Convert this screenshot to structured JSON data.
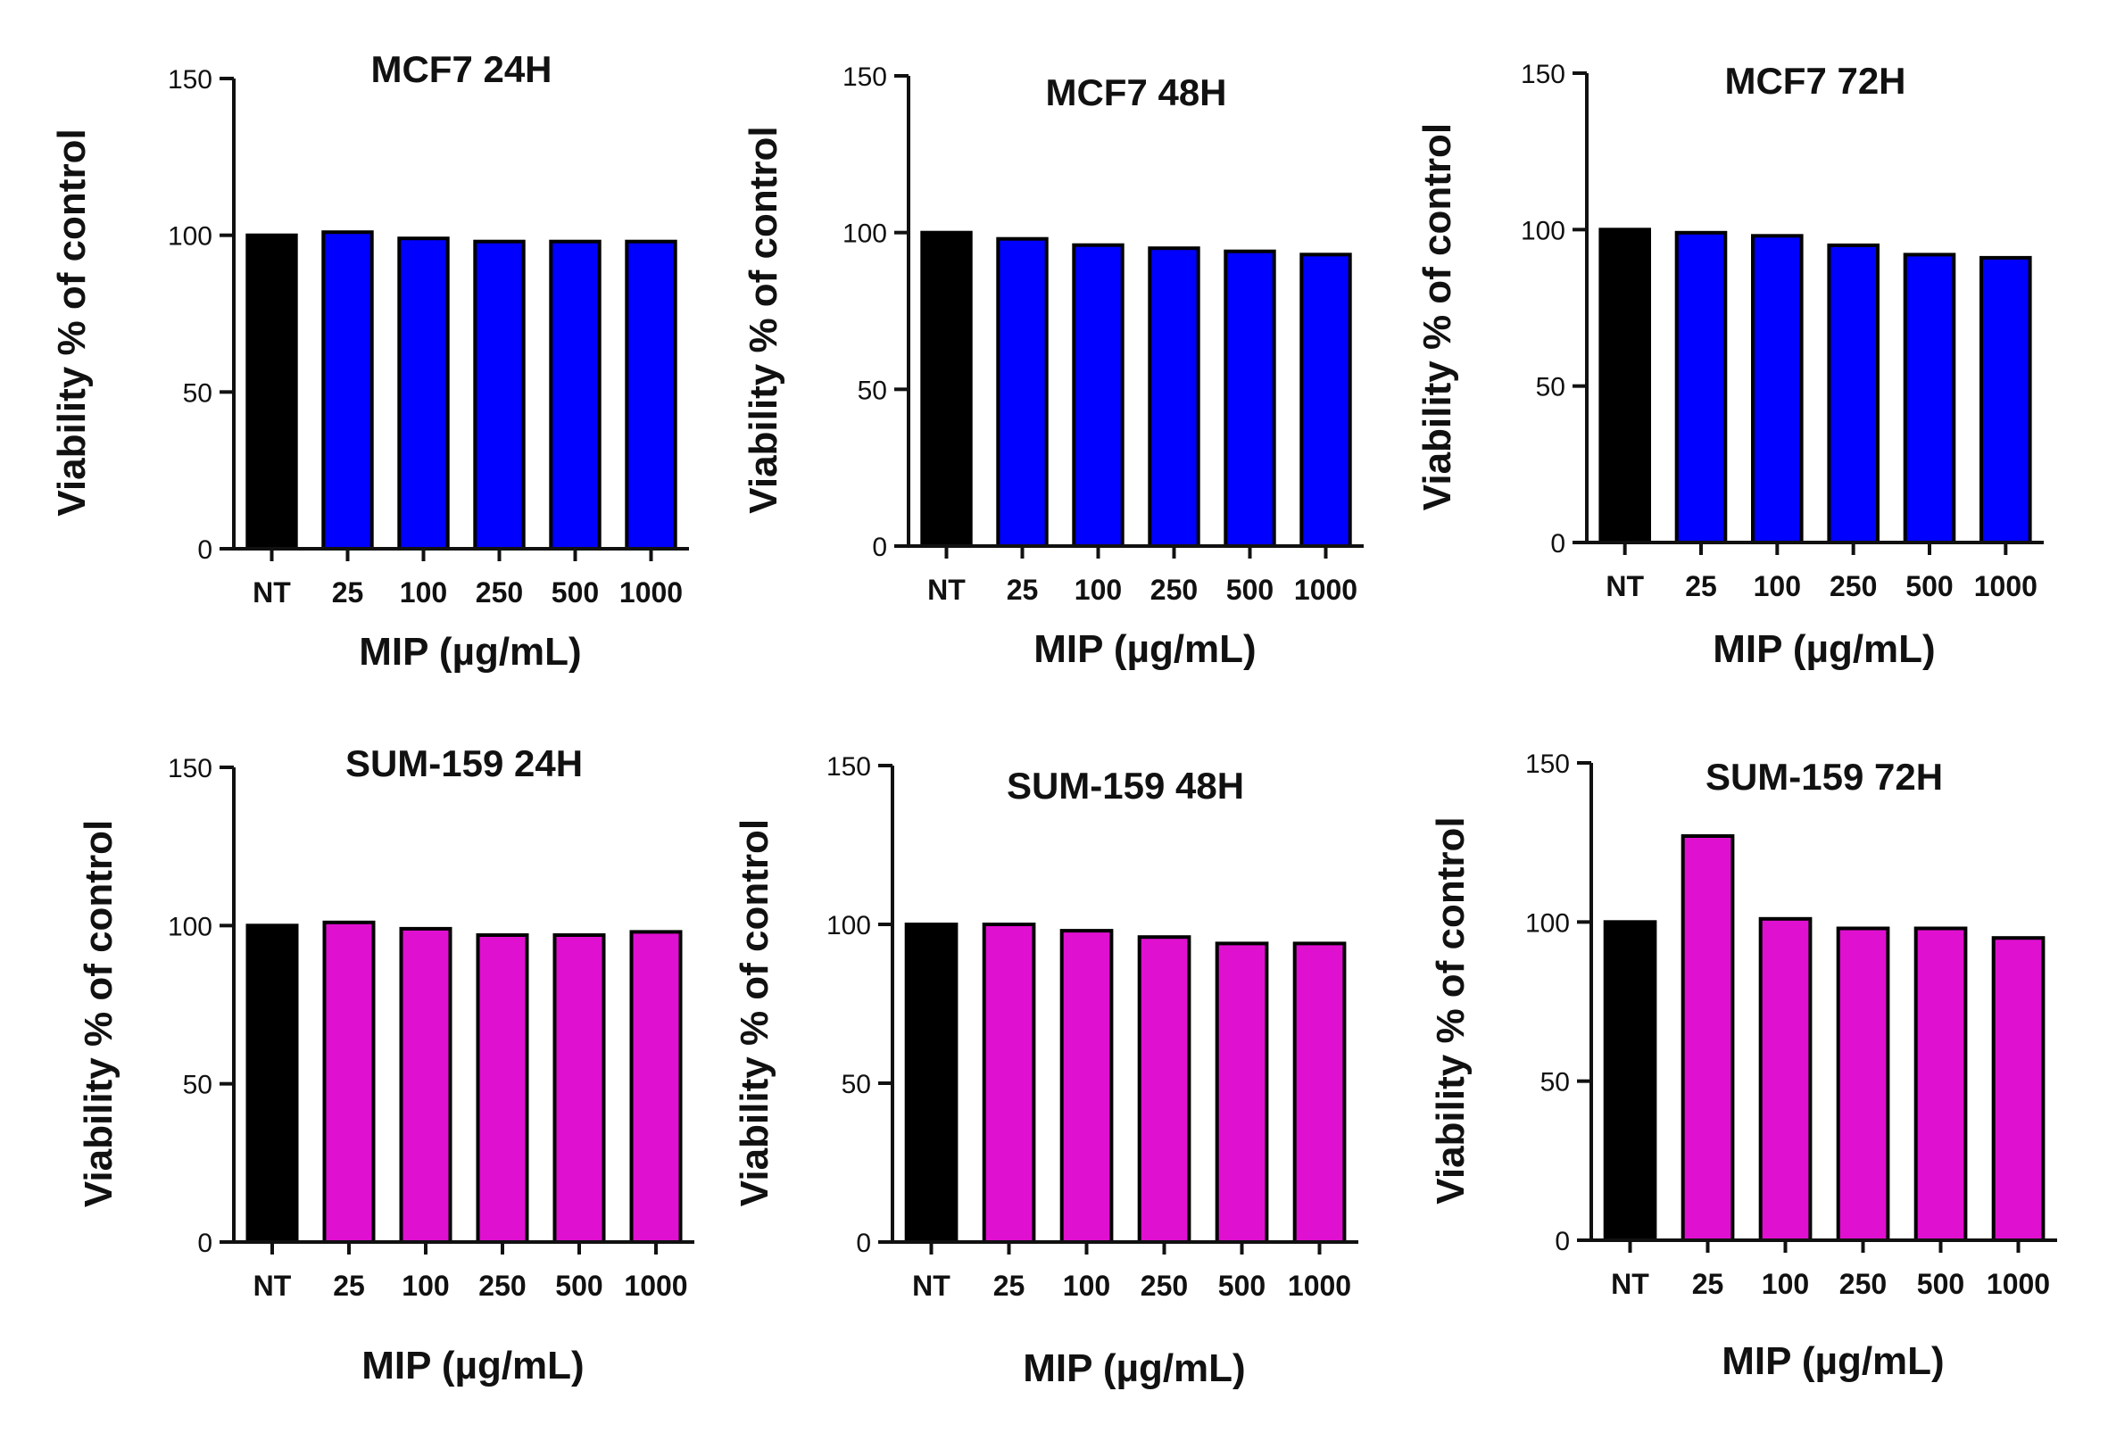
{
  "chart_data": [
    {
      "type": "bar",
      "title": "MCF7 24H",
      "xlabel": "MIP (µg/mL)",
      "ylabel": "Viability % of control",
      "ylim": [
        0,
        150
      ],
      "yticks": [
        0,
        50,
        100,
        150
      ],
      "categories": [
        "NT",
        "25",
        "100",
        "250",
        "500",
        "1000"
      ],
      "values": [
        100,
        101,
        99,
        98,
        98,
        98
      ],
      "colors": [
        "#000000",
        "#0000ff",
        "#0000ff",
        "#0000ff",
        "#0000ff",
        "#0000ff"
      ]
    },
    {
      "type": "bar",
      "title": "MCF7 48H",
      "xlabel": "MIP (µg/mL)",
      "ylabel": "Viability % of control",
      "ylim": [
        0,
        150
      ],
      "yticks": [
        0,
        50,
        100,
        150
      ],
      "categories": [
        "NT",
        "25",
        "100",
        "250",
        "500",
        "1000"
      ],
      "values": [
        100,
        98,
        96,
        95,
        94,
        93
      ],
      "colors": [
        "#000000",
        "#0000ff",
        "#0000ff",
        "#0000ff",
        "#0000ff",
        "#0000ff"
      ]
    },
    {
      "type": "bar",
      "title": "MCF7 72H",
      "xlabel": "MIP (µg/mL)",
      "ylabel": "Viability % of control",
      "ylim": [
        0,
        150
      ],
      "yticks": [
        0,
        50,
        100,
        150
      ],
      "categories": [
        "NT",
        "25",
        "100",
        "250",
        "500",
        "1000"
      ],
      "values": [
        100,
        99,
        98,
        95,
        92,
        91
      ],
      "colors": [
        "#000000",
        "#0000ff",
        "#0000ff",
        "#0000ff",
        "#0000ff",
        "#0000ff"
      ]
    },
    {
      "type": "bar",
      "title": "SUM-159 24H",
      "xlabel": "MIP (µg/mL)",
      "ylabel": "Viability % of control",
      "ylim": [
        0,
        150
      ],
      "yticks": [
        0,
        50,
        100,
        150
      ],
      "categories": [
        "NT",
        "25",
        "100",
        "250",
        "500",
        "1000"
      ],
      "values": [
        100,
        101,
        99,
        97,
        97,
        98
      ],
      "colors": [
        "#000000",
        "#e010d0",
        "#e010d0",
        "#e010d0",
        "#e010d0",
        "#e010d0"
      ]
    },
    {
      "type": "bar",
      "title": "SUM-159 48H",
      "xlabel": "MIP (µg/mL)",
      "ylabel": "Viability % of control",
      "ylim": [
        0,
        150
      ],
      "yticks": [
        0,
        50,
        100,
        150
      ],
      "categories": [
        "NT",
        "25",
        "100",
        "250",
        "500",
        "1000"
      ],
      "values": [
        100,
        100,
        98,
        96,
        94,
        94
      ],
      "colors": [
        "#000000",
        "#e010d0",
        "#e010d0",
        "#e010d0",
        "#e010d0",
        "#e010d0"
      ]
    },
    {
      "type": "bar",
      "title": "SUM-159 72H",
      "xlabel": "MIP (µg/mL)",
      "ylabel": "Viability % of control",
      "ylim": [
        0,
        150
      ],
      "yticks": [
        0,
        50,
        100,
        150
      ],
      "categories": [
        "NT",
        "25",
        "100",
        "250",
        "500",
        "1000"
      ],
      "values": [
        100,
        127,
        101,
        98,
        98,
        95
      ],
      "colors": [
        "#000000",
        "#e010d0",
        "#e010d0",
        "#e010d0",
        "#e010d0",
        "#e010d0"
      ]
    }
  ]
}
